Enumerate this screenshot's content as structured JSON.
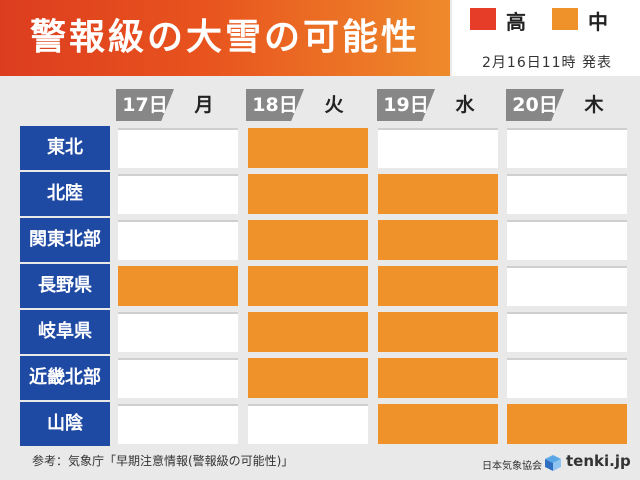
{
  "title": "警報級の大雪の可能性",
  "legend": {
    "items": [
      {
        "label": "高",
        "color": "#e53d27"
      },
      {
        "label": "中",
        "color": "#f0922a"
      }
    ],
    "issued": "2月16日11時 発表"
  },
  "days": [
    {
      "date": "17日",
      "dow": "月"
    },
    {
      "date": "18日",
      "dow": "火"
    },
    {
      "date": "19日",
      "dow": "水"
    },
    {
      "date": "20日",
      "dow": "木"
    }
  ],
  "regions": [
    {
      "name": "東北",
      "levels": [
        "none",
        "mid",
        "none",
        "none"
      ]
    },
    {
      "name": "北陸",
      "levels": [
        "none",
        "mid",
        "mid",
        "none"
      ]
    },
    {
      "name": "関東北部",
      "levels": [
        "none",
        "mid",
        "mid",
        "none"
      ]
    },
    {
      "name": "長野県",
      "levels": [
        "mid",
        "mid",
        "mid",
        "none"
      ]
    },
    {
      "name": "岐阜県",
      "levels": [
        "none",
        "mid",
        "mid",
        "none"
      ]
    },
    {
      "name": "近畿北部",
      "levels": [
        "none",
        "mid",
        "mid",
        "none"
      ]
    },
    {
      "name": "山陰",
      "levels": [
        "none",
        "none",
        "mid",
        "mid"
      ]
    }
  ],
  "footer": {
    "reference": "参考：気象庁「早期注意情報(警報級の可能性)」",
    "organization": "日本気象協会",
    "brand": "tenki.jp",
    "brand_icon": "tenki-logo-icon"
  }
}
